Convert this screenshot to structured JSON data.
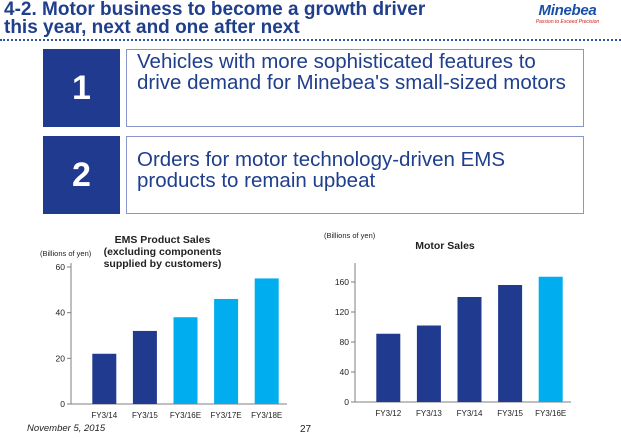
{
  "header": {
    "title_line1": "4-2. Motor business to become a growth driver",
    "title_line2": "this year, next and one after next",
    "logo_name": "Minebea",
    "logo_tagline": "Passion to Exceed Precision"
  },
  "points": [
    {
      "number": "1",
      "text": "Vehicles with more sophisticated features to drive demand for Minebea's small-sized motors"
    },
    {
      "number": "2",
      "text": "Orders for motor technology-driven EMS products to remain upbeat"
    }
  ],
  "footer": {
    "date": "November 5, 2015",
    "page": "27"
  },
  "colors": {
    "dark_bar": "#1f3a8f",
    "light_bar": "#00aeef",
    "title": "#1f3e8c"
  },
  "chart_data": [
    {
      "type": "bar",
      "title": "EMS Product Sales\n(excluding components\nsupplied by customers)",
      "ylabel": "(Billions of yen)",
      "categories": [
        "FY3/14",
        "FY3/15",
        "FY3/16E",
        "FY3/17E",
        "FY3/18E"
      ],
      "values": [
        22,
        32,
        38,
        46,
        55
      ],
      "bar_colors": [
        "#1f3a8f",
        "#1f3a8f",
        "#00aeef",
        "#00aeef",
        "#00aeef"
      ],
      "yticks": [
        0,
        20,
        40,
        60
      ],
      "ylim": [
        0,
        60
      ],
      "grid": false
    },
    {
      "type": "bar",
      "title": "Motor Sales",
      "ylabel": "(Billions of yen)",
      "categories": [
        "FY3/12",
        "FY3/13",
        "FY3/14",
        "FY3/15",
        "FY3/16E"
      ],
      "values": [
        91,
        102,
        140,
        156,
        167
      ],
      "bar_colors": [
        "#1f3a8f",
        "#1f3a8f",
        "#1f3a8f",
        "#1f3a8f",
        "#00aeef"
      ],
      "yticks": [
        0,
        40,
        80,
        120,
        160
      ],
      "ylim": [
        0,
        180
      ],
      "grid": false
    }
  ]
}
